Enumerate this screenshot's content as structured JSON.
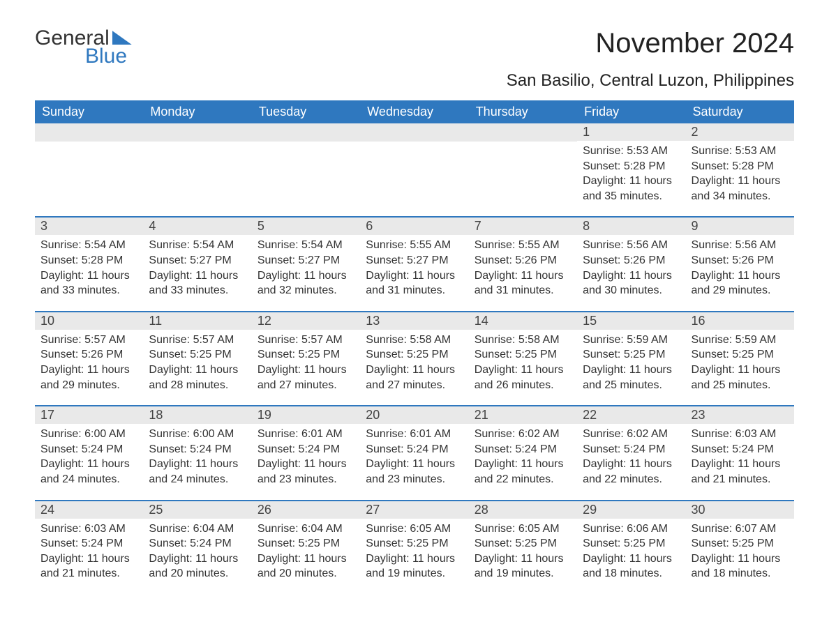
{
  "logo": {
    "text_general": "General",
    "text_blue": "Blue"
  },
  "title": "November 2024",
  "location": "San Basilio, Central Luzon, Philippines",
  "colors": {
    "header_bg": "#2f78bf",
    "header_text": "#ffffff",
    "daynum_bg": "#e9e9e9",
    "cell_border": "#2f78bf",
    "text": "#333333",
    "background": "#ffffff"
  },
  "typography": {
    "title_fontsize": 40,
    "location_fontsize": 24,
    "weekday_fontsize": 18,
    "daynum_fontsize": 18,
    "body_fontsize": 16,
    "font_family": "Arial"
  },
  "weekdays": [
    "Sunday",
    "Monday",
    "Tuesday",
    "Wednesday",
    "Thursday",
    "Friday",
    "Saturday"
  ],
  "weeks": [
    [
      null,
      null,
      null,
      null,
      null,
      {
        "day": "1",
        "sunrise": "Sunrise: 5:53 AM",
        "sunset": "Sunset: 5:28 PM",
        "daylight": "Daylight: 11 hours and 35 minutes."
      },
      {
        "day": "2",
        "sunrise": "Sunrise: 5:53 AM",
        "sunset": "Sunset: 5:28 PM",
        "daylight": "Daylight: 11 hours and 34 minutes."
      }
    ],
    [
      {
        "day": "3",
        "sunrise": "Sunrise: 5:54 AM",
        "sunset": "Sunset: 5:28 PM",
        "daylight": "Daylight: 11 hours and 33 minutes."
      },
      {
        "day": "4",
        "sunrise": "Sunrise: 5:54 AM",
        "sunset": "Sunset: 5:27 PM",
        "daylight": "Daylight: 11 hours and 33 minutes."
      },
      {
        "day": "5",
        "sunrise": "Sunrise: 5:54 AM",
        "sunset": "Sunset: 5:27 PM",
        "daylight": "Daylight: 11 hours and 32 minutes."
      },
      {
        "day": "6",
        "sunrise": "Sunrise: 5:55 AM",
        "sunset": "Sunset: 5:27 PM",
        "daylight": "Daylight: 11 hours and 31 minutes."
      },
      {
        "day": "7",
        "sunrise": "Sunrise: 5:55 AM",
        "sunset": "Sunset: 5:26 PM",
        "daylight": "Daylight: 11 hours and 31 minutes."
      },
      {
        "day": "8",
        "sunrise": "Sunrise: 5:56 AM",
        "sunset": "Sunset: 5:26 PM",
        "daylight": "Daylight: 11 hours and 30 minutes."
      },
      {
        "day": "9",
        "sunrise": "Sunrise: 5:56 AM",
        "sunset": "Sunset: 5:26 PM",
        "daylight": "Daylight: 11 hours and 29 minutes."
      }
    ],
    [
      {
        "day": "10",
        "sunrise": "Sunrise: 5:57 AM",
        "sunset": "Sunset: 5:26 PM",
        "daylight": "Daylight: 11 hours and 29 minutes."
      },
      {
        "day": "11",
        "sunrise": "Sunrise: 5:57 AM",
        "sunset": "Sunset: 5:25 PM",
        "daylight": "Daylight: 11 hours and 28 minutes."
      },
      {
        "day": "12",
        "sunrise": "Sunrise: 5:57 AM",
        "sunset": "Sunset: 5:25 PM",
        "daylight": "Daylight: 11 hours and 27 minutes."
      },
      {
        "day": "13",
        "sunrise": "Sunrise: 5:58 AM",
        "sunset": "Sunset: 5:25 PM",
        "daylight": "Daylight: 11 hours and 27 minutes."
      },
      {
        "day": "14",
        "sunrise": "Sunrise: 5:58 AM",
        "sunset": "Sunset: 5:25 PM",
        "daylight": "Daylight: 11 hours and 26 minutes."
      },
      {
        "day": "15",
        "sunrise": "Sunrise: 5:59 AM",
        "sunset": "Sunset: 5:25 PM",
        "daylight": "Daylight: 11 hours and 25 minutes."
      },
      {
        "day": "16",
        "sunrise": "Sunrise: 5:59 AM",
        "sunset": "Sunset: 5:25 PM",
        "daylight": "Daylight: 11 hours and 25 minutes."
      }
    ],
    [
      {
        "day": "17",
        "sunrise": "Sunrise: 6:00 AM",
        "sunset": "Sunset: 5:24 PM",
        "daylight": "Daylight: 11 hours and 24 minutes."
      },
      {
        "day": "18",
        "sunrise": "Sunrise: 6:00 AM",
        "sunset": "Sunset: 5:24 PM",
        "daylight": "Daylight: 11 hours and 24 minutes."
      },
      {
        "day": "19",
        "sunrise": "Sunrise: 6:01 AM",
        "sunset": "Sunset: 5:24 PM",
        "daylight": "Daylight: 11 hours and 23 minutes."
      },
      {
        "day": "20",
        "sunrise": "Sunrise: 6:01 AM",
        "sunset": "Sunset: 5:24 PM",
        "daylight": "Daylight: 11 hours and 23 minutes."
      },
      {
        "day": "21",
        "sunrise": "Sunrise: 6:02 AM",
        "sunset": "Sunset: 5:24 PM",
        "daylight": "Daylight: 11 hours and 22 minutes."
      },
      {
        "day": "22",
        "sunrise": "Sunrise: 6:02 AM",
        "sunset": "Sunset: 5:24 PM",
        "daylight": "Daylight: 11 hours and 22 minutes."
      },
      {
        "day": "23",
        "sunrise": "Sunrise: 6:03 AM",
        "sunset": "Sunset: 5:24 PM",
        "daylight": "Daylight: 11 hours and 21 minutes."
      }
    ],
    [
      {
        "day": "24",
        "sunrise": "Sunrise: 6:03 AM",
        "sunset": "Sunset: 5:24 PM",
        "daylight": "Daylight: 11 hours and 21 minutes."
      },
      {
        "day": "25",
        "sunrise": "Sunrise: 6:04 AM",
        "sunset": "Sunset: 5:24 PM",
        "daylight": "Daylight: 11 hours and 20 minutes."
      },
      {
        "day": "26",
        "sunrise": "Sunrise: 6:04 AM",
        "sunset": "Sunset: 5:25 PM",
        "daylight": "Daylight: 11 hours and 20 minutes."
      },
      {
        "day": "27",
        "sunrise": "Sunrise: 6:05 AM",
        "sunset": "Sunset: 5:25 PM",
        "daylight": "Daylight: 11 hours and 19 minutes."
      },
      {
        "day": "28",
        "sunrise": "Sunrise: 6:05 AM",
        "sunset": "Sunset: 5:25 PM",
        "daylight": "Daylight: 11 hours and 19 minutes."
      },
      {
        "day": "29",
        "sunrise": "Sunrise: 6:06 AM",
        "sunset": "Sunset: 5:25 PM",
        "daylight": "Daylight: 11 hours and 18 minutes."
      },
      {
        "day": "30",
        "sunrise": "Sunrise: 6:07 AM",
        "sunset": "Sunset: 5:25 PM",
        "daylight": "Daylight: 11 hours and 18 minutes."
      }
    ]
  ]
}
